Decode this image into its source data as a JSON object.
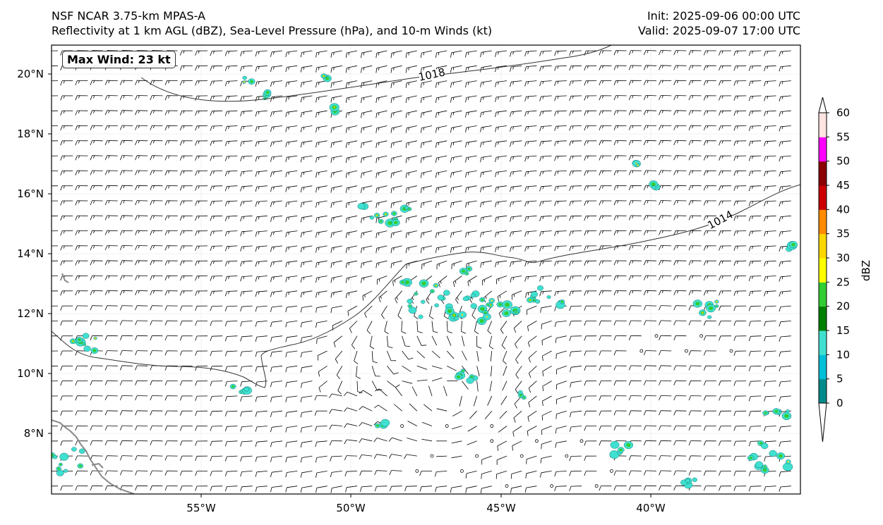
{
  "title": {
    "line1": "NSF NCAR 3.75-km MPAS-A",
    "line2": "Reflectivity at 1 km AGL (dBZ), Sea-Level Pressure (hPa), and 10-m Winds (kt)",
    "init": "Init: 2025-09-06 00:00 UTC",
    "valid": "Valid: 2025-09-07 17:00 UTC"
  },
  "max_wind": "Max Wind: 23 kt",
  "axes": {
    "lon_ticks": [
      "55°W",
      "50°W",
      "45°W",
      "40°W"
    ],
    "lat_ticks": [
      "20°N",
      "18°N",
      "16°N",
      "14°N",
      "12°N",
      "10°N",
      "8°N"
    ]
  },
  "isobars": [
    {
      "label": "1018"
    },
    {
      "label": "1014"
    }
  ],
  "colorbar": {
    "label": "dBZ",
    "ticks": [
      "0",
      "5",
      "10",
      "15",
      "20",
      "25",
      "30",
      "35",
      "40",
      "45",
      "50",
      "55",
      "60"
    ],
    "colors": [
      "#008b8b",
      "#00bfd8",
      "#40e0d0",
      "#008000",
      "#32cd32",
      "#ffff00",
      "#ffd700",
      "#ff8c00",
      "#cc0000",
      "#8b0000",
      "#ff00ff",
      "#ffe4e1"
    ]
  }
}
